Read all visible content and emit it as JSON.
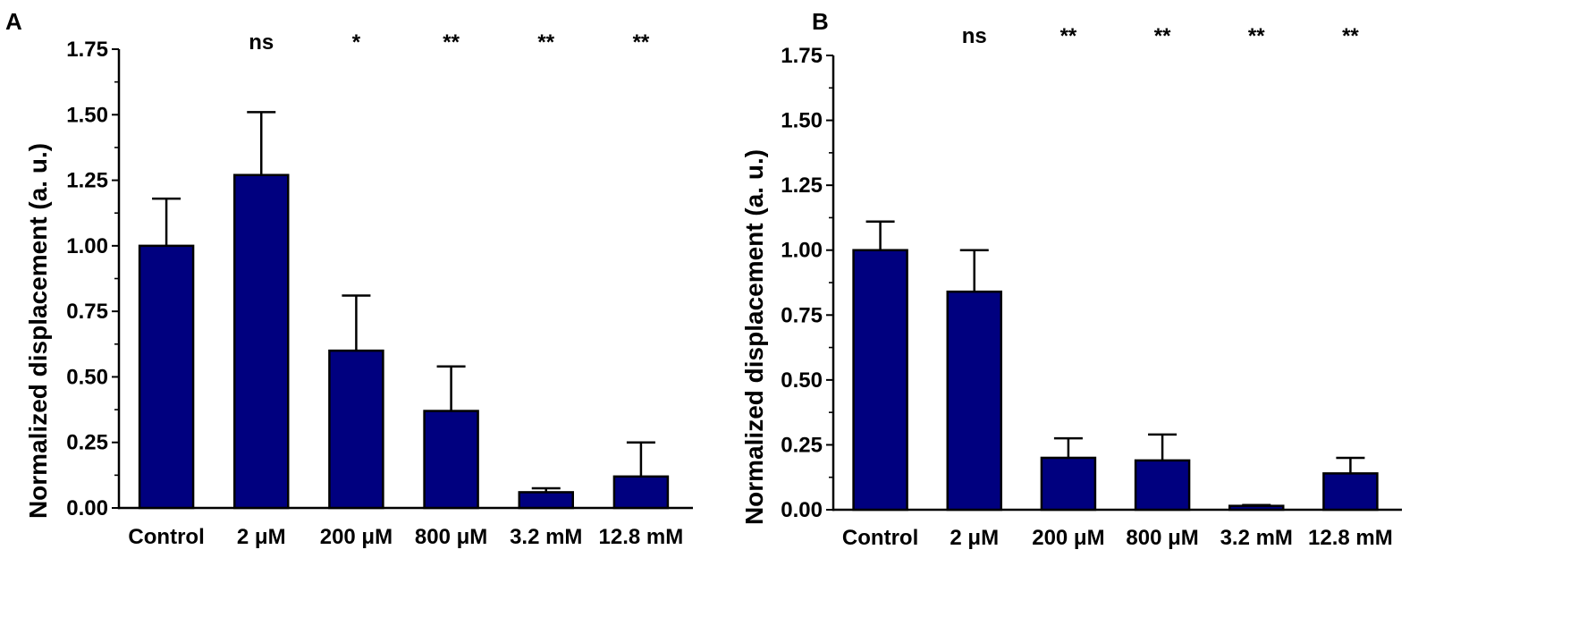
{
  "figure": {
    "bar_color": "#00007f",
    "stroke_color": "#000000"
  },
  "chart_data": [
    {
      "panel": "A",
      "type": "bar",
      "ylabel": "Normalized displacement (a. u.)",
      "xlabel": "",
      "ylim": [
        0,
        1.75
      ],
      "yticks": [
        "0.00",
        "0.25",
        "0.50",
        "0.75",
        "1.00",
        "1.25",
        "1.50",
        "1.75"
      ],
      "categories": [
        "Control",
        "2 μM",
        "200 μM",
        "800 μM",
        "3.2 mM",
        "12.8 mM"
      ],
      "values": [
        1.0,
        1.27,
        0.6,
        0.37,
        0.06,
        0.12
      ],
      "errors": [
        0.18,
        0.24,
        0.21,
        0.17,
        0.015,
        0.13
      ],
      "significance": [
        "",
        "ns",
        "*",
        "**",
        "**",
        "**"
      ]
    },
    {
      "panel": "B",
      "type": "bar",
      "ylabel": "Normalized displacement (a. u.)",
      "xlabel": "",
      "ylim": [
        0,
        1.75
      ],
      "yticks": [
        "0.00",
        "0.25",
        "0.50",
        "0.75",
        "1.00",
        "1.25",
        "1.50",
        "1.75"
      ],
      "categories": [
        "Control",
        "2 μM",
        "200 μM",
        "800 μM",
        "3.2 mM",
        "12.8 mM"
      ],
      "values": [
        1.0,
        0.84,
        0.2,
        0.19,
        0.015,
        0.14
      ],
      "errors": [
        0.11,
        0.16,
        0.075,
        0.1,
        0.003,
        0.06
      ],
      "significance": [
        "",
        "ns",
        "**",
        "**",
        "**",
        "**"
      ]
    }
  ]
}
